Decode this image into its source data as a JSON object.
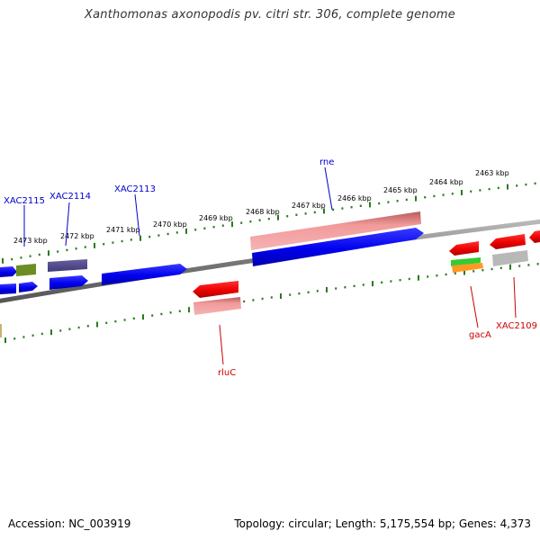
{
  "title": "Xanthomonas axonopodis pv. citri str. 306, complete genome",
  "footer": {
    "accession": "Accession: NC_003919",
    "summary": "Topology: circular; Length: 5,175,554 bp; Genes: 4,373"
  },
  "colors": {
    "forward_label": "#0000cc",
    "reverse_label": "#cc0000",
    "ruler_tick": "#2a7a1e",
    "backbone": "#777777"
  },
  "ruler_labels": [
    {
      "kbp": 2473,
      "label": "2473 kbp"
    },
    {
      "kbp": 2472,
      "label": "2472 kbp"
    },
    {
      "kbp": 2471,
      "label": "2471 kbp"
    },
    {
      "kbp": 2470,
      "label": "2470 kbp"
    },
    {
      "kbp": 2469,
      "label": "2469 kbp"
    },
    {
      "kbp": 2468,
      "label": "2468 kbp"
    },
    {
      "kbp": 2467,
      "label": "2467 kbp"
    },
    {
      "kbp": 2466,
      "label": "2466 kbp"
    },
    {
      "kbp": 2465,
      "label": "2465 kbp"
    },
    {
      "kbp": 2464,
      "label": "2464 kbp"
    },
    {
      "kbp": 2463,
      "label": "2463 kbp"
    }
  ],
  "gene_labels": {
    "forward": [
      "XAC2115",
      "XAC2114",
      "XAC2113",
      "rne"
    ],
    "reverse": [
      "rluC",
      "gacA",
      "XAC2109"
    ]
  }
}
